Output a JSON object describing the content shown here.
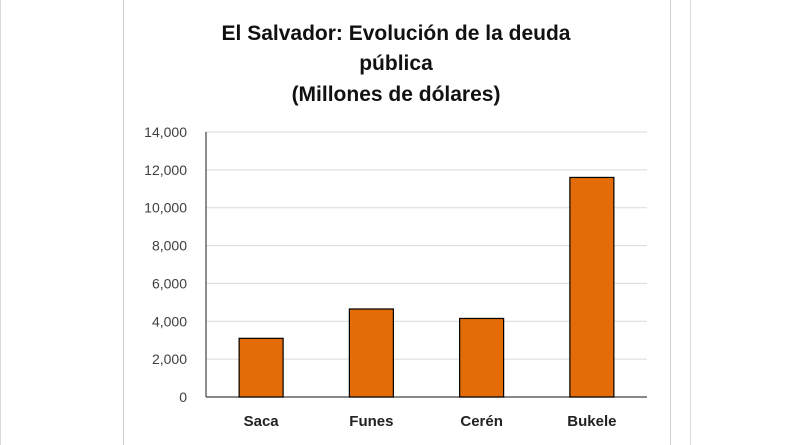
{
  "chart_data": {
    "type": "bar",
    "title_lines": [
      "El Salvador: Evolución de la deuda",
      "pública",
      "(Millones de dólares)"
    ],
    "categories": [
      "Saca",
      "Funes",
      "Cerén",
      "Bukele"
    ],
    "values": [
      3100,
      4650,
      4150,
      11600
    ],
    "yticks": [
      "0",
      "2,000",
      "4,000",
      "6,000",
      "8,000",
      "10,000",
      "12,000",
      "14,000"
    ],
    "ylim": [
      0,
      14000
    ],
    "grid": true,
    "bar_color": "#e36c09",
    "bar_edge_color": "#000000"
  }
}
